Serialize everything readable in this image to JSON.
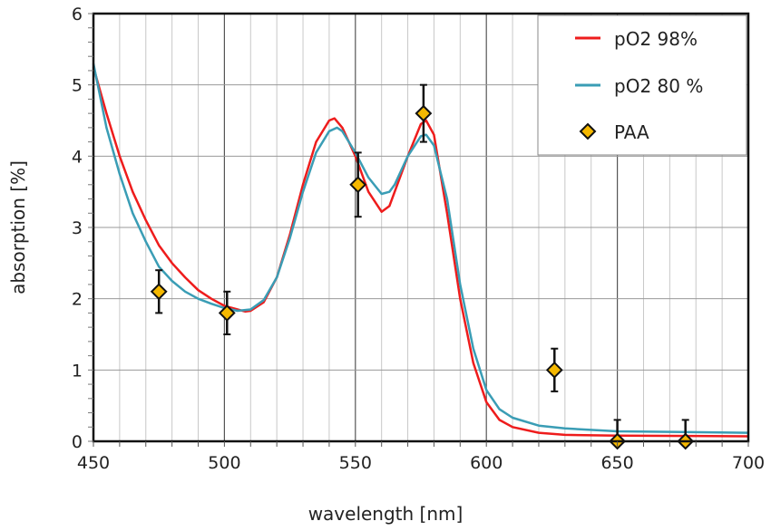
{
  "chart_data": {
    "type": "line",
    "title": "",
    "xlabel": "wavelength [nm]",
    "ylabel": "absorption [%]",
    "xlim": [
      450,
      700
    ],
    "ylim": [
      0,
      6
    ],
    "xticks": [
      450,
      500,
      550,
      600,
      650,
      700
    ],
    "yticks": [
      0,
      1,
      2,
      3,
      4,
      5,
      6
    ],
    "grid": true,
    "legend_position": "top-right",
    "series": [
      {
        "name": "pO2 98%",
        "type": "line",
        "color": "#ee1c1c",
        "x": [
          450,
          455,
          460,
          465,
          470,
          475,
          480,
          485,
          490,
          495,
          500,
          505,
          508,
          510,
          515,
          520,
          525,
          530,
          535,
          540,
          542,
          545,
          550,
          555,
          560,
          563,
          565,
          570,
          575,
          577,
          580,
          585,
          590,
          595,
          600,
          605,
          610,
          620,
          630,
          650,
          700
        ],
        "y": [
          5.25,
          4.6,
          4.0,
          3.5,
          3.1,
          2.75,
          2.5,
          2.3,
          2.12,
          2.0,
          1.9,
          1.85,
          1.82,
          1.83,
          1.95,
          2.3,
          2.9,
          3.6,
          4.2,
          4.5,
          4.53,
          4.4,
          4.0,
          3.5,
          3.22,
          3.3,
          3.5,
          4.0,
          4.45,
          4.5,
          4.3,
          3.2,
          2.0,
          1.1,
          0.55,
          0.3,
          0.2,
          0.12,
          0.09,
          0.08,
          0.07
        ]
      },
      {
        "name": "pO2 80 %",
        "type": "line",
        "color": "#3a9db5",
        "x": [
          450,
          455,
          460,
          465,
          470,
          475,
          480,
          485,
          490,
          495,
          500,
          505,
          510,
          515,
          520,
          525,
          530,
          535,
          540,
          543,
          545,
          550,
          555,
          560,
          563,
          565,
          570,
          575,
          577,
          580,
          585,
          590,
          595,
          600,
          605,
          610,
          620,
          630,
          650,
          700
        ],
        "y": [
          5.3,
          4.4,
          3.75,
          3.2,
          2.8,
          2.45,
          2.25,
          2.1,
          2.0,
          1.93,
          1.87,
          1.83,
          1.85,
          1.98,
          2.3,
          2.85,
          3.5,
          4.05,
          4.35,
          4.4,
          4.35,
          4.05,
          3.7,
          3.47,
          3.5,
          3.6,
          4.0,
          4.28,
          4.3,
          4.15,
          3.4,
          2.2,
          1.3,
          0.72,
          0.45,
          0.33,
          0.22,
          0.18,
          0.14,
          0.12
        ]
      },
      {
        "name": "PAA",
        "type": "scatter",
        "color": "#f5b800",
        "x": [
          475,
          501,
          551,
          576,
          626,
          650,
          676
        ],
        "y": [
          2.1,
          1.8,
          3.6,
          4.6,
          1.0,
          0.0,
          0.0
        ],
        "error": [
          0.3,
          0.3,
          0.45,
          0.4,
          0.3,
          0.3,
          0.3
        ]
      }
    ]
  }
}
